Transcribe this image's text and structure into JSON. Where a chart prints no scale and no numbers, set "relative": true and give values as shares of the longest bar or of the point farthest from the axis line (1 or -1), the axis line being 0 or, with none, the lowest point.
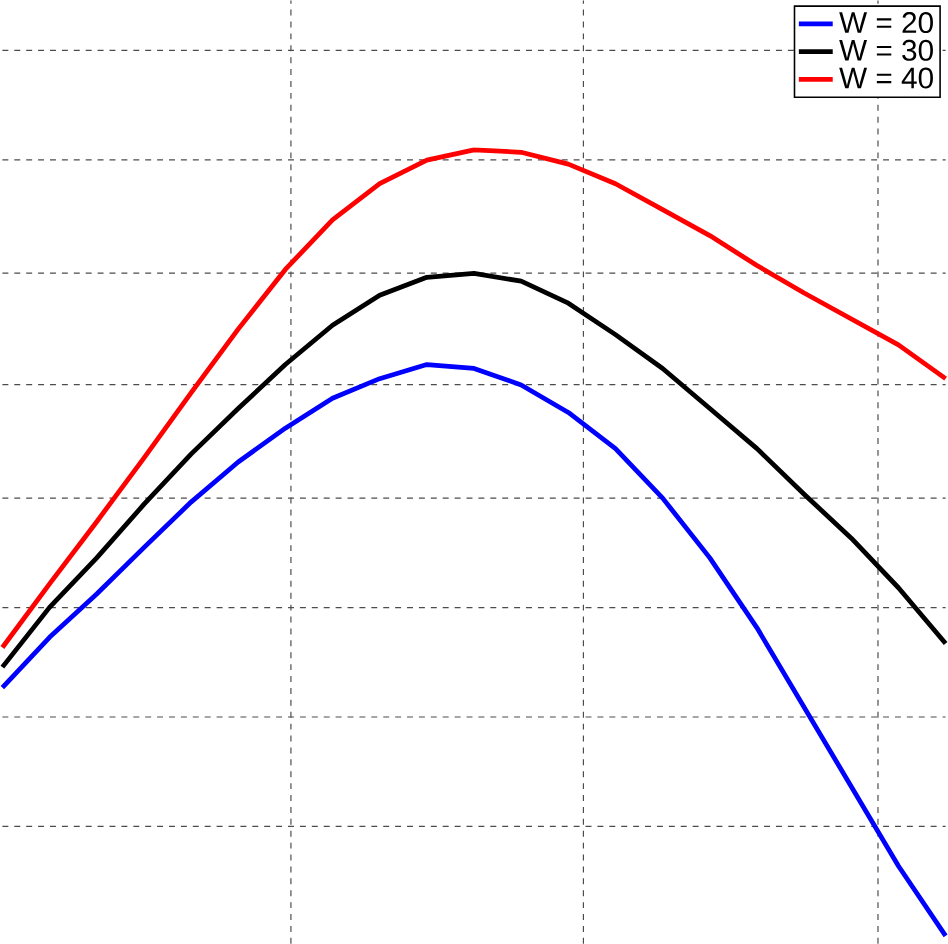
{
  "chart_data": {
    "type": "line",
    "relative": true,
    "grid": true,
    "legend": "top right",
    "categories": [
      null,
      null,
      null,
      null,
      null,
      null,
      null,
      null,
      null,
      null,
      null,
      null,
      null,
      null,
      null,
      null,
      null,
      null,
      null,
      null,
      null
    ],
    "series": [
      {
        "name": "W = 20",
        "color": "#0000ff",
        "values": [
          0.316,
          0.38,
          0.435,
          0.494,
          0.552,
          0.603,
          0.646,
          0.684,
          0.709,
          0.727,
          0.722,
          0.701,
          0.666,
          0.62,
          0.557,
          0.481,
          0.392,
          0.291,
          0.19,
          0.089,
          0
        ]
      },
      {
        "name": "W = 30",
        "color": "#000000",
        "values": [
          0.342,
          0.418,
          0.481,
          0.549,
          0.613,
          0.671,
          0.727,
          0.777,
          0.815,
          0.838,
          0.843,
          0.833,
          0.805,
          0.765,
          0.722,
          0.671,
          0.62,
          0.562,
          0.506,
          0.443,
          0.372
        ]
      },
      {
        "name": "W = 40",
        "color": "#ff0000",
        "values": [
          0.367,
          0.448,
          0.527,
          0.608,
          0.691,
          0.772,
          0.848,
          0.911,
          0.957,
          0.987,
          1,
          0.997,
          0.982,
          0.957,
          0.924,
          0.891,
          0.853,
          0.818,
          0.785,
          0.752,
          0.709
        ]
      }
    ]
  }
}
